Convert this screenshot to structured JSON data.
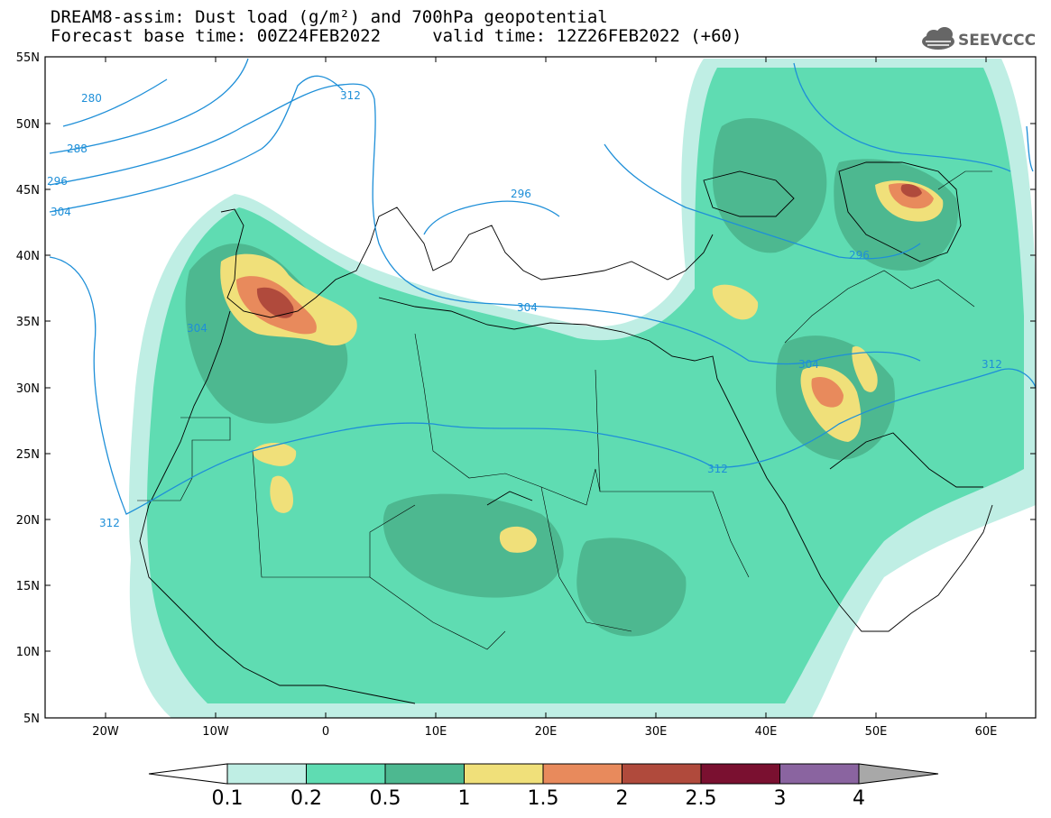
{
  "header": {
    "title_line1": "DREAM8-assim: Dust load (g/m²) and 700hPa geopotential",
    "title_line2": "Forecast base time: 00Z24FEB2022     valid time: 12Z26FEB2022 (+60)",
    "logo_text": "SEEVCCC"
  },
  "map": {
    "lat_labels": [
      "55N",
      "50N",
      "45N",
      "40N",
      "35N",
      "30N",
      "25N",
      "20N",
      "15N",
      "10N",
      "5N"
    ],
    "lon_labels": [
      "20W",
      "10W",
      "0",
      "10E",
      "20E",
      "30E",
      "40E",
      "50E",
      "60E"
    ],
    "isoline_labels": [
      "280",
      "288",
      "296",
      "304",
      "312",
      "312",
      "296",
      "304",
      "304",
      "296",
      "304",
      "312",
      "312"
    ]
  },
  "colorbar": {
    "levels": [
      "0.1",
      "0.2",
      "0.5",
      "1",
      "1.5",
      "2",
      "2.5",
      "3",
      "4"
    ],
    "colors": [
      "#bfeee4",
      "#5fdcb2",
      "#4db890",
      "#f0e07a",
      "#e88a5c",
      "#b04a3c",
      "#7a1030",
      "#8a64a0"
    ],
    "under_color": "#ffffff",
    "over_color": "#a8a8a8"
  }
}
